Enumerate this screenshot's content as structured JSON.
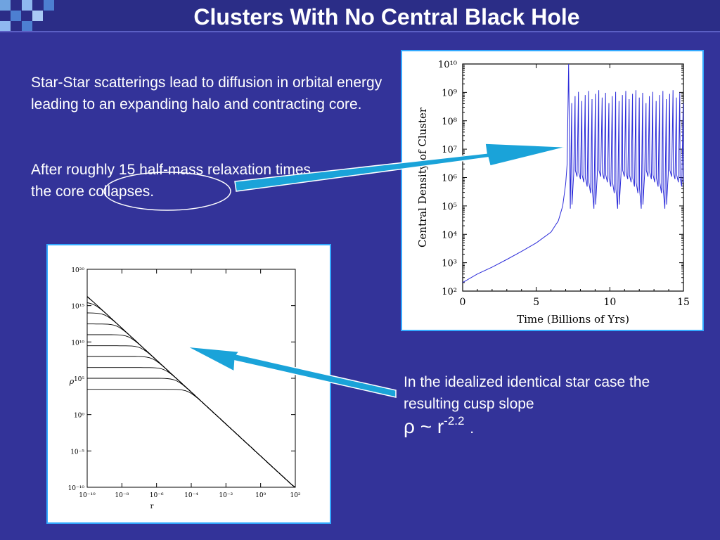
{
  "slide": {
    "title": "Clusters With No Central Black Hole",
    "paragraph1": "Star-Star scatterings lead to diffusion in orbital energy leading to an expanding halo and contracting core.",
    "paragraph2": "After roughly 15 half-mass relaxation times the core collapses.",
    "caption": "In the idealized identical star case the resulting cusp slope",
    "formula": {
      "lhs": "ρ ~ r",
      "exponent": "-2.2",
      "tail": "."
    },
    "colors": {
      "background": "#333399",
      "title_bar": "#2b2d87",
      "arrow": "#1aa3d9",
      "curve": "#2b2bd9"
    }
  },
  "chart_data": [
    {
      "type": "line",
      "title": "",
      "xlabel": "Time (Billions of Yrs)",
      "ylabel": "Central Density of Cluster",
      "xlim": [
        0,
        15
      ],
      "ylim": [
        100,
        10000000000
      ],
      "yscale": "log",
      "x_ticks": [
        "0",
        "5",
        "10",
        "15"
      ],
      "y_ticks": [
        "10²",
        "10³",
        "10⁴",
        "10⁵",
        "10⁶",
        "10⁷",
        "10⁸",
        "10⁹",
        "10¹⁰"
      ],
      "series": [
        {
          "x": [
            0,
            1,
            2,
            3,
            4,
            5,
            6,
            6.5,
            6.8,
            7.0,
            7.1,
            7.2
          ],
          "y": [
            200,
            400,
            700,
            1300,
            2500,
            5000,
            12000,
            30000,
            100000,
            600000,
            3000000,
            10000000000
          ]
        }
      ],
      "oscillation": {
        "x_start": 7.2,
        "x_end": 15,
        "low": 80000,
        "high": 1200000000
      }
    },
    {
      "type": "line",
      "title": "",
      "xlabel": "r",
      "ylabel": "ρ",
      "yscale": "log",
      "xscale": "log",
      "x_ticks": [
        "10⁻¹⁰",
        "10⁻⁸",
        "10⁻⁶",
        "10⁻⁴",
        "10⁻²",
        "10⁰",
        "10²"
      ],
      "y_ticks": [
        "10²⁰",
        "10¹⁵",
        "10¹⁰",
        "10⁵",
        "10⁰",
        "10⁻⁵",
        "10⁻¹⁰"
      ],
      "xlim": [
        1e-10,
        100
      ],
      "ylim": [
        1e-10,
        1e+20
      ],
      "cusp_slope": -2.2,
      "core_densities": [
        1e+18,
        1e+17,
        3000000000000000.0,
        100000000000000.0,
        3000000000000.0,
        100000000000.0,
        3000000000.0,
        100000000.0,
        3000000.0,
        100000.0,
        3000.0
      ]
    }
  ]
}
